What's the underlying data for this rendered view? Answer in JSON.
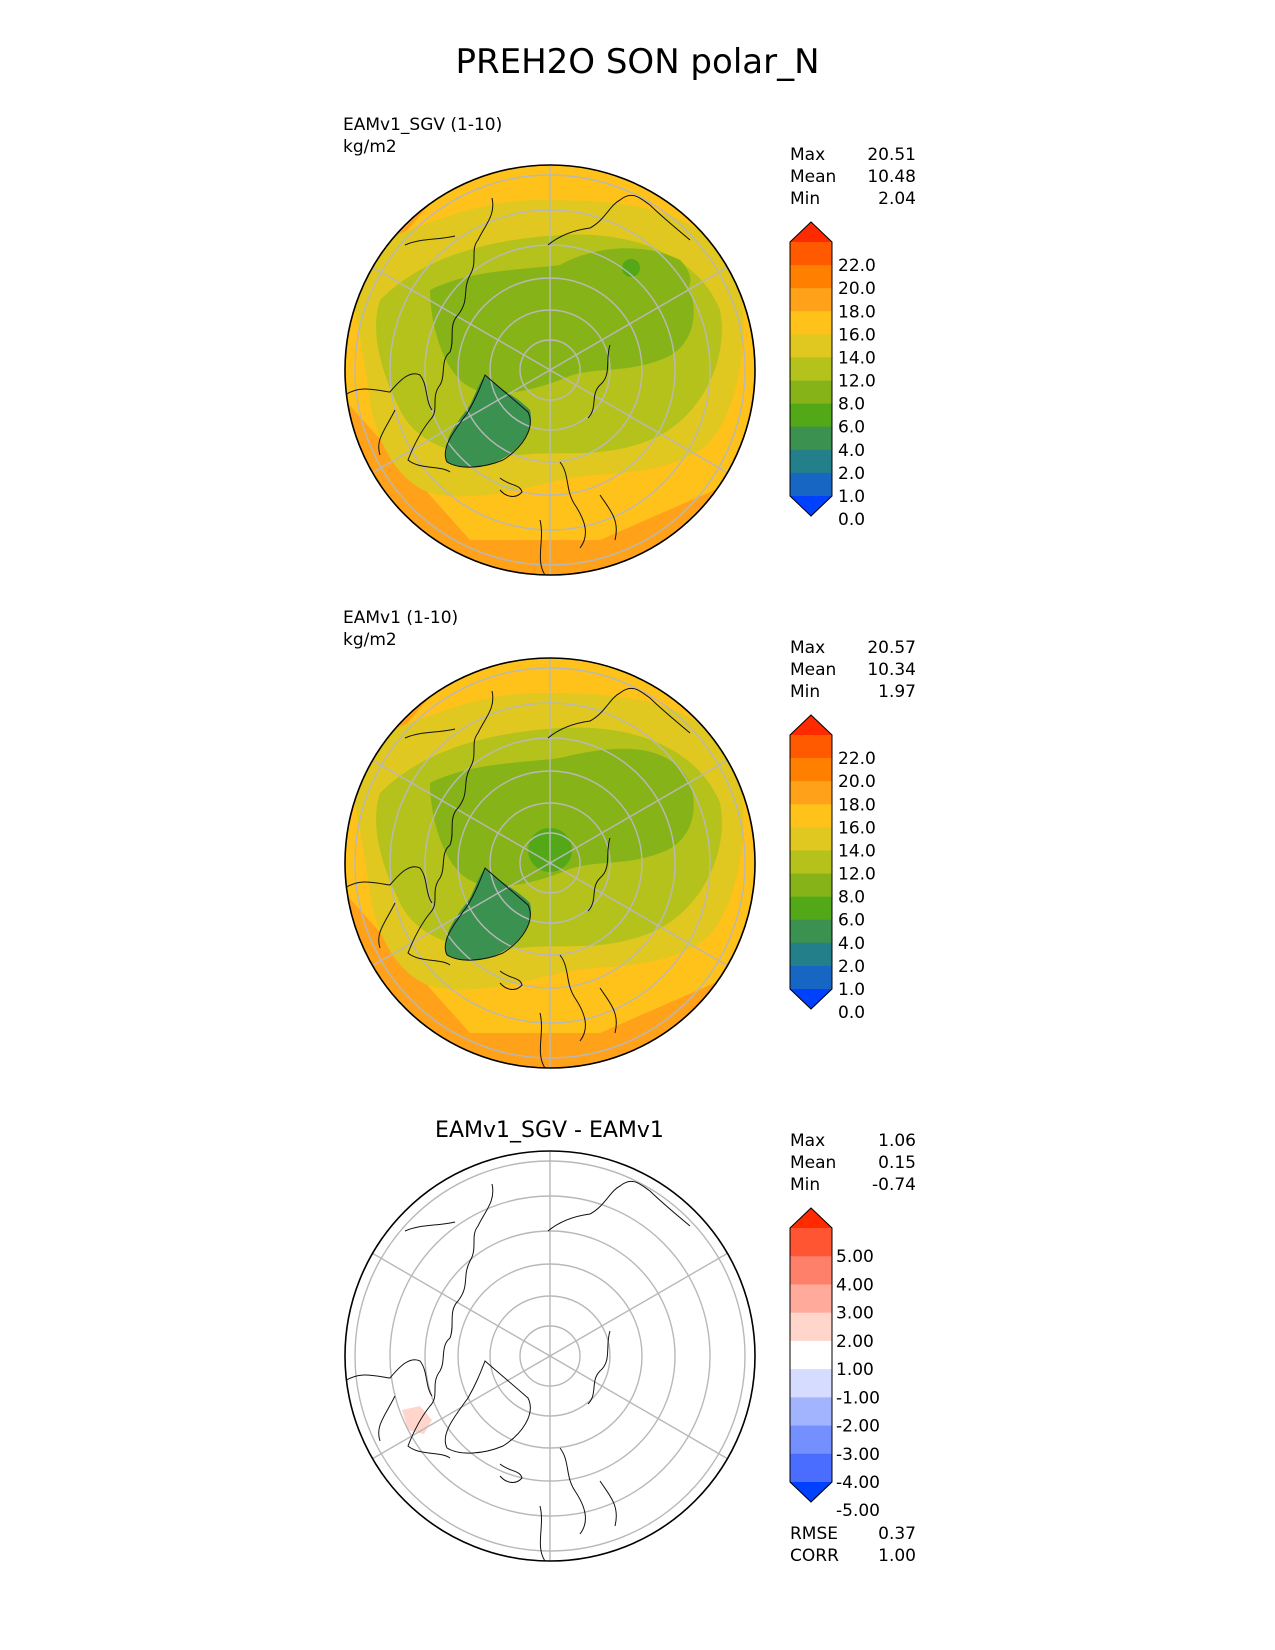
{
  "title": "PREH2O SON polar_N",
  "panels": [
    {
      "name": "test",
      "title_line1": "EAMv1_SGV (1-10)",
      "title_line2": "kg/m2",
      "stats": [
        {
          "label": "Max",
          "value": "20.51"
        },
        {
          "label": "Mean",
          "value": "10.48"
        },
        {
          "label": "Min",
          "value": "2.04"
        }
      ],
      "colorbar": {
        "ticks": [
          "22.0",
          "20.0",
          "18.0",
          "16.0",
          "14.0",
          "12.0",
          "8.0",
          "6.0",
          "4.0",
          "2.0",
          "1.0",
          "0.0"
        ],
        "colors": [
          "#ff2a00",
          "#ff5a00",
          "#ff8000",
          "#ffa21a",
          "#ffc21a",
          "#e0c820",
          "#b5c21c",
          "#86b418",
          "#52a817",
          "#3a9150",
          "#23808a",
          "#1766c4",
          "#0040ff"
        ]
      }
    },
    {
      "name": "reference",
      "title_line1": "EAMv1 (1-10)",
      "title_line2": "kg/m2",
      "stats": [
        {
          "label": "Max",
          "value": "20.57"
        },
        {
          "label": "Mean",
          "value": "10.34"
        },
        {
          "label": "Min",
          "value": "1.97"
        }
      ],
      "colorbar": {
        "ticks": [
          "22.0",
          "20.0",
          "18.0",
          "16.0",
          "14.0",
          "12.0",
          "8.0",
          "6.0",
          "4.0",
          "2.0",
          "1.0",
          "0.0"
        ],
        "colors": [
          "#ff2a00",
          "#ff5a00",
          "#ff8000",
          "#ffa21a",
          "#ffc21a",
          "#e0c820",
          "#b5c21c",
          "#86b418",
          "#52a817",
          "#3a9150",
          "#23808a",
          "#1766c4",
          "#0040ff"
        ]
      }
    },
    {
      "name": "difference",
      "title_line1": "EAMv1_SGV - EAMv1",
      "stats": [
        {
          "label": "Max",
          "value": "1.06"
        },
        {
          "label": "Mean",
          "value": "0.15"
        },
        {
          "label": "Min",
          "value": "-0.74"
        }
      ],
      "metrics": [
        {
          "label": "RMSE",
          "value": "0.37"
        },
        {
          "label": "CORR",
          "value": "1.00"
        }
      ],
      "colorbar": {
        "ticks": [
          "5.00",
          "4.00",
          "3.00",
          "2.00",
          "1.00",
          "-1.00",
          "-2.00",
          "-3.00",
          "-4.00",
          "-5.00"
        ],
        "colors": [
          "#ff2a00",
          "#ff5533",
          "#ff806a",
          "#ffaa9a",
          "#ffd5cc",
          "#ffffff",
          "#d5dcff",
          "#a3b4ff",
          "#7490ff",
          "#4a6cff",
          "#0040ff"
        ]
      }
    }
  ]
}
